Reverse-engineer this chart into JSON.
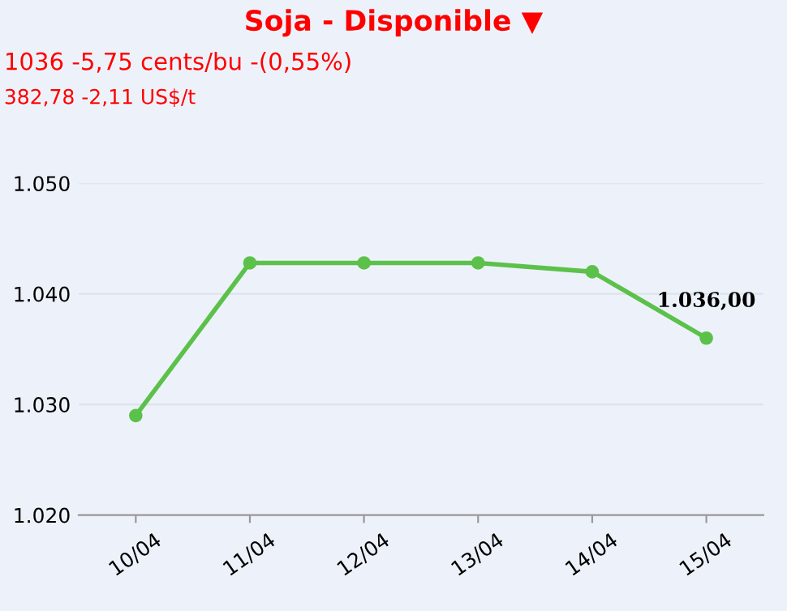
{
  "chart_data": {
    "type": "line",
    "title": "Soja - Disponible ▼",
    "subtitle": "1036 -5,75 cents/bu -(0,55%)",
    "annotations": [
      "382,78 -2,11 US$/t"
    ],
    "categories": [
      "10/04",
      "11/04",
      "12/04",
      "13/04",
      "14/04",
      "15/04"
    ],
    "series": [
      {
        "color": "#5cc14a",
        "values": [
          1029.0,
          1042.8,
          1042.8,
          1042.8,
          1042.0,
          1036.0
        ],
        "value_labels": [
          null,
          null,
          null,
          null,
          null,
          "1.036,00"
        ]
      }
    ],
    "ylim": [
      1020,
      1050
    ],
    "yticks": [
      {
        "value": 1020,
        "label": "1.020"
      },
      {
        "value": 1030,
        "label": "1.030"
      },
      {
        "value": 1040,
        "label": "1.040"
      },
      {
        "value": 1050,
        "label": "1.050"
      }
    ],
    "grid": "y",
    "marker": "circle",
    "line_style": "solid",
    "legend": false
  }
}
